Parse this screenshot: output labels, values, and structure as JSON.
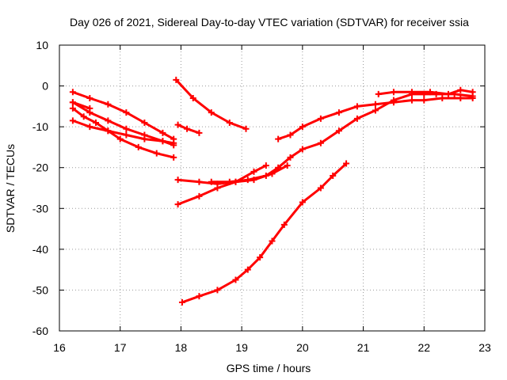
{
  "chart_data": {
    "type": "scatter",
    "title": "Day 026 of 2021, Sidereal Day-to-day VTEC variation (SDTVAR) for receiver ssia",
    "xlabel": "GPS time / hours",
    "ylabel": "SDTVAR / TECUs",
    "xlim": [
      16,
      23
    ],
    "ylim": [
      -60,
      10
    ],
    "xticks": [
      16,
      17,
      18,
      19,
      20,
      21,
      22,
      23
    ],
    "yticks": [
      -60,
      -50,
      -40,
      -30,
      -20,
      -10,
      0,
      10
    ],
    "grid": true,
    "marker": "plus",
    "color": "#ff0000",
    "series": [
      {
        "x": [
          16.22,
          16.5,
          16.8,
          17.1,
          17.4,
          17.7,
          17.88
        ],
        "y": [
          -1.5,
          -3,
          -4.5,
          -6.5,
          -9,
          -11.5,
          -13
        ]
      },
      {
        "x": [
          16.22,
          16.5,
          16.8,
          17.1,
          17.4,
          17.7,
          17.88
        ],
        "y": [
          -4,
          -6.5,
          -8.5,
          -10.5,
          -12,
          -13.5,
          -14.5
        ]
      },
      {
        "x": [
          16.22,
          16.4,
          16.6,
          16.8,
          17.0,
          17.3,
          17.6,
          17.88
        ],
        "y": [
          -5.5,
          -7.5,
          -9,
          -11,
          -13,
          -15,
          -16.5,
          -17.5
        ]
      },
      {
        "x": [
          16.22,
          16.5,
          16.8,
          17.1,
          17.4,
          17.7,
          17.88
        ],
        "y": [
          -8.5,
          -10,
          -11,
          -12,
          -13,
          -13.5,
          -14
        ]
      },
      {
        "x": [
          16.22,
          16.5
        ],
        "y": [
          -4,
          -5.5
        ]
      },
      {
        "x": [
          17.95,
          18.1,
          18.3
        ],
        "y": [
          -9.5,
          -10.5,
          -11.5
        ]
      },
      {
        "x": [
          17.92,
          18.2,
          18.5,
          18.8,
          19.07
        ],
        "y": [
          1.5,
          -3,
          -6.5,
          -9,
          -10.5
        ]
      },
      {
        "x": [
          17.95,
          18.3,
          18.6,
          18.9,
          19.2,
          19.5,
          19.75
        ],
        "y": [
          -23,
          -23.5,
          -24,
          -23.5,
          -23,
          -21.5,
          -19.5
        ]
      },
      {
        "x": [
          17.95,
          18.3,
          18.6,
          18.9,
          19.2,
          19.4
        ],
        "y": [
          -29,
          -27,
          -25,
          -23.5,
          -21,
          -19.5
        ]
      },
      {
        "x": [
          18.5,
          18.8,
          19.1,
          19.4,
          19.6,
          19.8,
          20.0,
          20.3,
          20.6,
          20.9,
          21.2,
          21.5,
          21.8,
          22.0,
          22.2,
          22.5,
          22.8
        ],
        "y": [
          -23.5,
          -23.5,
          -23,
          -22,
          -20,
          -17.5,
          -15.5,
          -14,
          -11,
          -8,
          -6,
          -3.5,
          -2,
          -2,
          -2,
          -2,
          -2.5
        ]
      },
      {
        "x": [
          19.6,
          19.8,
          20.0,
          20.3,
          20.6,
          20.9,
          21.2,
          21.5,
          21.8,
          22.0,
          22.3,
          22.6,
          22.8
        ],
        "y": [
          -13,
          -12,
          -10,
          -8,
          -6.5,
          -5,
          -4.5,
          -4,
          -3.5,
          -3.5,
          -3,
          -3,
          -3
        ]
      },
      {
        "x": [
          21.25,
          21.5,
          21.8,
          22.1,
          22.4,
          22.6,
          22.8
        ],
        "y": [
          -2,
          -1.5,
          -1.5,
          -1.5,
          -2,
          -1,
          -1.5
        ]
      },
      {
        "x": [
          18.02,
          18.3,
          18.6,
          18.9,
          19.1,
          19.3,
          19.5,
          19.7,
          20.0,
          20.3,
          20.5,
          20.72
        ],
        "y": [
          -53,
          -51.5,
          -50,
          -47.5,
          -45,
          -42,
          -38,
          -34,
          -28.5,
          -25,
          -22,
          -19
        ]
      }
    ]
  }
}
